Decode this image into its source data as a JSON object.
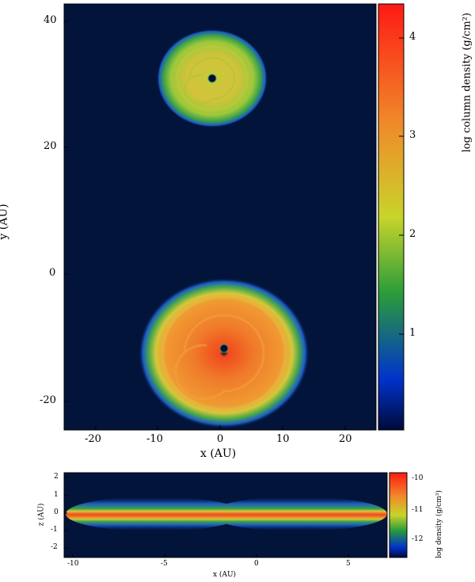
{
  "top_panel": {
    "x_label": "x (AU)",
    "y_label": "y (AU)",
    "x_ticks": [
      "-20",
      "-10",
      "0",
      "10",
      "20"
    ],
    "y_ticks": [
      "40",
      "20",
      "0",
      "-20"
    ],
    "colorbar_label": "log column density  (g/cm²)",
    "colorbar_ticks": [
      "4",
      "3",
      "2",
      "1"
    ],
    "disks": [
      {
        "x": -1,
        "y": 30.5,
        "radius": 7,
        "peak_log_density": 2.3
      },
      {
        "x": 0.5,
        "y": -11.5,
        "radius": 11,
        "peak_log_density": 3.2
      }
    ]
  },
  "bottom_panel": {
    "x_label": "x (AU)",
    "y_label": "z (AU)",
    "x_ticks": [
      "-10",
      "-5",
      "0",
      "5"
    ],
    "y_ticks": [
      "2",
      "1",
      "0",
      "-1",
      "-2"
    ],
    "colorbar_label": "log density (g/cm³)",
    "colorbar_ticks": [
      "-10",
      "-11",
      "-12"
    ]
  },
  "colors": {
    "background": "#03143a",
    "colormap": [
      "#000a3a",
      "#0033cc",
      "#2a9c3a",
      "#c8d42a",
      "#f08a2a",
      "#ff1a14"
    ]
  }
}
